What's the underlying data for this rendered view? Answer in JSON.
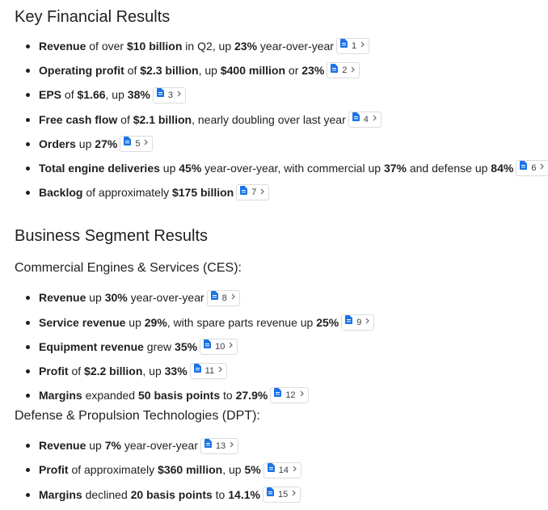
{
  "headings": {
    "key_financial": "Key Financial Results",
    "business_segment": "Business Segment Results",
    "ces": "Commercial Engines & Services (CES):",
    "dpt": "Defense & Propulsion Technologies (DPT):"
  },
  "colors": {
    "doc_icon": "#1a73e8",
    "border": "#dadce0"
  },
  "icons": {
    "citation": "document-icon",
    "expand": "chevron-right-icon"
  },
  "key_financial_items": [
    {
      "citation": "1",
      "segments": [
        {
          "t": "Revenue",
          "b": true
        },
        {
          "t": " of over ",
          "b": false
        },
        {
          "t": "$10 billion",
          "b": true
        },
        {
          "t": " in Q2, up ",
          "b": false
        },
        {
          "t": "23%",
          "b": true
        },
        {
          "t": " year-over-year",
          "b": false
        }
      ]
    },
    {
      "citation": "2",
      "segments": [
        {
          "t": "Operating profit",
          "b": true
        },
        {
          "t": " of ",
          "b": false
        },
        {
          "t": "$2.3 billion",
          "b": true
        },
        {
          "t": ", up ",
          "b": false
        },
        {
          "t": "$400 million",
          "b": true
        },
        {
          "t": " or ",
          "b": false
        },
        {
          "t": "23%",
          "b": true
        }
      ]
    },
    {
      "citation": "3",
      "segments": [
        {
          "t": "EPS",
          "b": true
        },
        {
          "t": " of ",
          "b": false
        },
        {
          "t": "$1.66",
          "b": true
        },
        {
          "t": ", up ",
          "b": false
        },
        {
          "t": "38%",
          "b": true
        }
      ]
    },
    {
      "citation": "4",
      "segments": [
        {
          "t": "Free cash flow",
          "b": true
        },
        {
          "t": " of ",
          "b": false
        },
        {
          "t": "$2.1 billion",
          "b": true
        },
        {
          "t": ", nearly doubling over last year",
          "b": false
        }
      ]
    },
    {
      "citation": "5",
      "segments": [
        {
          "t": "Orders",
          "b": true
        },
        {
          "t": " up ",
          "b": false
        },
        {
          "t": "27%",
          "b": true
        }
      ]
    },
    {
      "citation": "6",
      "segments": [
        {
          "t": "Total engine deliveries",
          "b": true
        },
        {
          "t": " up ",
          "b": false
        },
        {
          "t": "45%",
          "b": true
        },
        {
          "t": " year-over-year, with commercial up ",
          "b": false
        },
        {
          "t": "37%",
          "b": true
        },
        {
          "t": " and defense up ",
          "b": false
        },
        {
          "t": "84%",
          "b": true
        }
      ]
    },
    {
      "citation": "7",
      "segments": [
        {
          "t": "Backlog",
          "b": true
        },
        {
          "t": " of approximately ",
          "b": false
        },
        {
          "t": "$175 billion",
          "b": true
        }
      ]
    }
  ],
  "ces_items": [
    {
      "citation": "8",
      "segments": [
        {
          "t": "Revenue",
          "b": true
        },
        {
          "t": " up ",
          "b": false
        },
        {
          "t": "30%",
          "b": true
        },
        {
          "t": " year-over-year",
          "b": false
        }
      ]
    },
    {
      "citation": "9",
      "segments": [
        {
          "t": "Service revenue",
          "b": true
        },
        {
          "t": " up ",
          "b": false
        },
        {
          "t": "29%",
          "b": true
        },
        {
          "t": ", with spare parts revenue up ",
          "b": false
        },
        {
          "t": "25%",
          "b": true
        }
      ]
    },
    {
      "citation": "10",
      "segments": [
        {
          "t": "Equipment revenue",
          "b": true
        },
        {
          "t": " grew ",
          "b": false
        },
        {
          "t": "35%",
          "b": true
        }
      ]
    },
    {
      "citation": "11",
      "segments": [
        {
          "t": "Profit",
          "b": true
        },
        {
          "t": " of ",
          "b": false
        },
        {
          "t": "$2.2 billion",
          "b": true
        },
        {
          "t": ", up ",
          "b": false
        },
        {
          "t": "33%",
          "b": true
        }
      ]
    },
    {
      "citation": "12",
      "segments": [
        {
          "t": "Margins",
          "b": true
        },
        {
          "t": " expanded ",
          "b": false
        },
        {
          "t": "50 basis points",
          "b": true
        },
        {
          "t": " to ",
          "b": false
        },
        {
          "t": "27.9%",
          "b": true
        }
      ]
    }
  ],
  "dpt_items": [
    {
      "citation": "13",
      "segments": [
        {
          "t": "Revenue",
          "b": true
        },
        {
          "t": " up ",
          "b": false
        },
        {
          "t": "7%",
          "b": true
        },
        {
          "t": " year-over-year",
          "b": false
        }
      ]
    },
    {
      "citation": "14",
      "segments": [
        {
          "t": "Profit",
          "b": true
        },
        {
          "t": " of approximately ",
          "b": false
        },
        {
          "t": "$360 million",
          "b": true
        },
        {
          "t": ", up ",
          "b": false
        },
        {
          "t": "5%",
          "b": true
        }
      ]
    },
    {
      "citation": "15",
      "segments": [
        {
          "t": "Margins",
          "b": true
        },
        {
          "t": " declined ",
          "b": false
        },
        {
          "t": "20 basis points",
          "b": true
        },
        {
          "t": " to ",
          "b": false
        },
        {
          "t": "14.1%",
          "b": true
        }
      ]
    }
  ]
}
